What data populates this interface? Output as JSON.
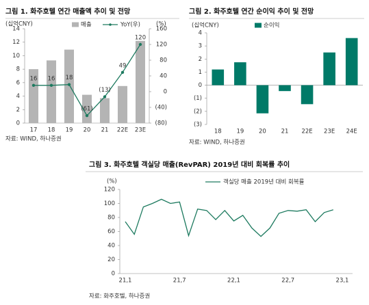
{
  "chart_data": [
    {
      "type": "bar",
      "title": "그림 1. 화주호텔 연간 매출액 추이 및 전망",
      "ylabel": "(십억CNY)",
      "y2label": "(%)",
      "categories": [
        "17",
        "18",
        "19",
        "20",
        "21",
        "22E",
        "23E"
      ],
      "series": [
        {
          "name": "매출",
          "color": "#b4b4b4",
          "values": [
            8.0,
            9.3,
            10.9,
            4.2,
            3.7,
            5.5,
            12.2
          ]
        },
        {
          "name": "YoY(우)",
          "type": "line",
          "axis": "y2",
          "color": "#1d7a5f",
          "values": [
            16,
            16,
            18,
            -61,
            -13,
            49,
            120
          ],
          "value_labels": [
            "16",
            "16",
            "18",
            "(61)",
            "(13)",
            "49",
            "120"
          ]
        }
      ],
      "ylim": [
        0,
        14
      ],
      "yticks": [
        0,
        2,
        4,
        6,
        8,
        10,
        12,
        14
      ],
      "y2lim": [
        -80,
        160
      ],
      "y2ticks": [
        {
          "value": -80,
          "label": "(80)"
        },
        {
          "value": -40,
          "label": "(40)"
        },
        0,
        40,
        80,
        120,
        160
      ],
      "source": "자료: WIND, 하나증권"
    },
    {
      "type": "bar",
      "title": "그림 2. 화주호텔 연간 순이익 추이 및 전망",
      "ylabel": "(십억CNY)",
      "categories": [
        "18",
        "19",
        "20",
        "21",
        "22E",
        "23E",
        "24E"
      ],
      "series": [
        {
          "name": "순이익",
          "color": "#007a68",
          "values": [
            1.2,
            1.75,
            -2.15,
            -0.45,
            -1.45,
            2.5,
            3.6
          ]
        }
      ],
      "ylim": [
        -3,
        4
      ],
      "yticks": [
        {
          "value": -3,
          "label": "(3)"
        },
        {
          "value": -2,
          "label": "(2)"
        },
        {
          "value": -1,
          "label": "(1)"
        },
        0,
        1,
        2,
        3,
        4
      ],
      "source": "자료: WIND, 하나증권"
    },
    {
      "type": "line",
      "title": "그림 3. 화주호텔 객실당 매출(RevPAR) 2019년 대비 회복률 추이",
      "ylabel": "(%)",
      "categories": [
        "21,1",
        null,
        null,
        null,
        null,
        null,
        "21,7",
        null,
        null,
        null,
        null,
        null,
        "22,1",
        null,
        null,
        null,
        null,
        null,
        "22,7",
        null,
        null,
        null,
        null,
        null,
        "23,1"
      ],
      "series": [
        {
          "name": "객실당 매출 2019년 대비 회복률",
          "color": "#1d7a5f",
          "values": [
            74,
            56,
            95,
            100,
            106,
            100,
            102,
            54,
            92,
            90,
            77,
            90,
            75,
            83,
            65,
            53,
            65,
            86,
            90,
            89,
            91,
            74,
            87,
            91,
            null
          ]
        }
      ],
      "ylim": [
        0,
        120
      ],
      "yticks": [
        0,
        20,
        40,
        60,
        80,
        100,
        120
      ],
      "source": "자료: 화주호텔, 하나증권"
    }
  ]
}
